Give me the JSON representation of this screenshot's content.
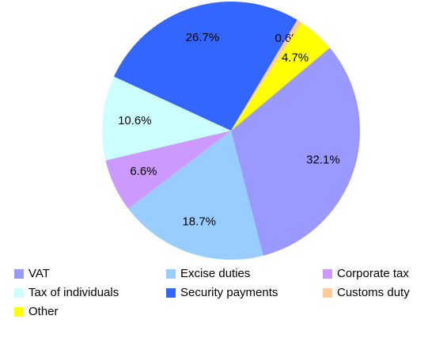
{
  "chart_data": {
    "type": "pie",
    "categories": [
      "VAT",
      "Excise duties",
      "Corporate tax",
      "Tax of individuals",
      "Security payments",
      "Customs duty",
      "Other"
    ],
    "values": [
      32.1,
      18.7,
      6.6,
      10.6,
      26.7,
      0.6,
      4.7
    ],
    "value_labels": [
      "32.1%",
      "18.7%",
      "6.6%",
      "10.6%",
      "26.7%",
      "0.6%",
      "4.7%"
    ],
    "colors": [
      "#9999ff",
      "#99ccff",
      "#cc99ff",
      "#ccffff",
      "#3366ff",
      "#ffcc99",
      "#ffff00"
    ],
    "legend": "bottom"
  }
}
